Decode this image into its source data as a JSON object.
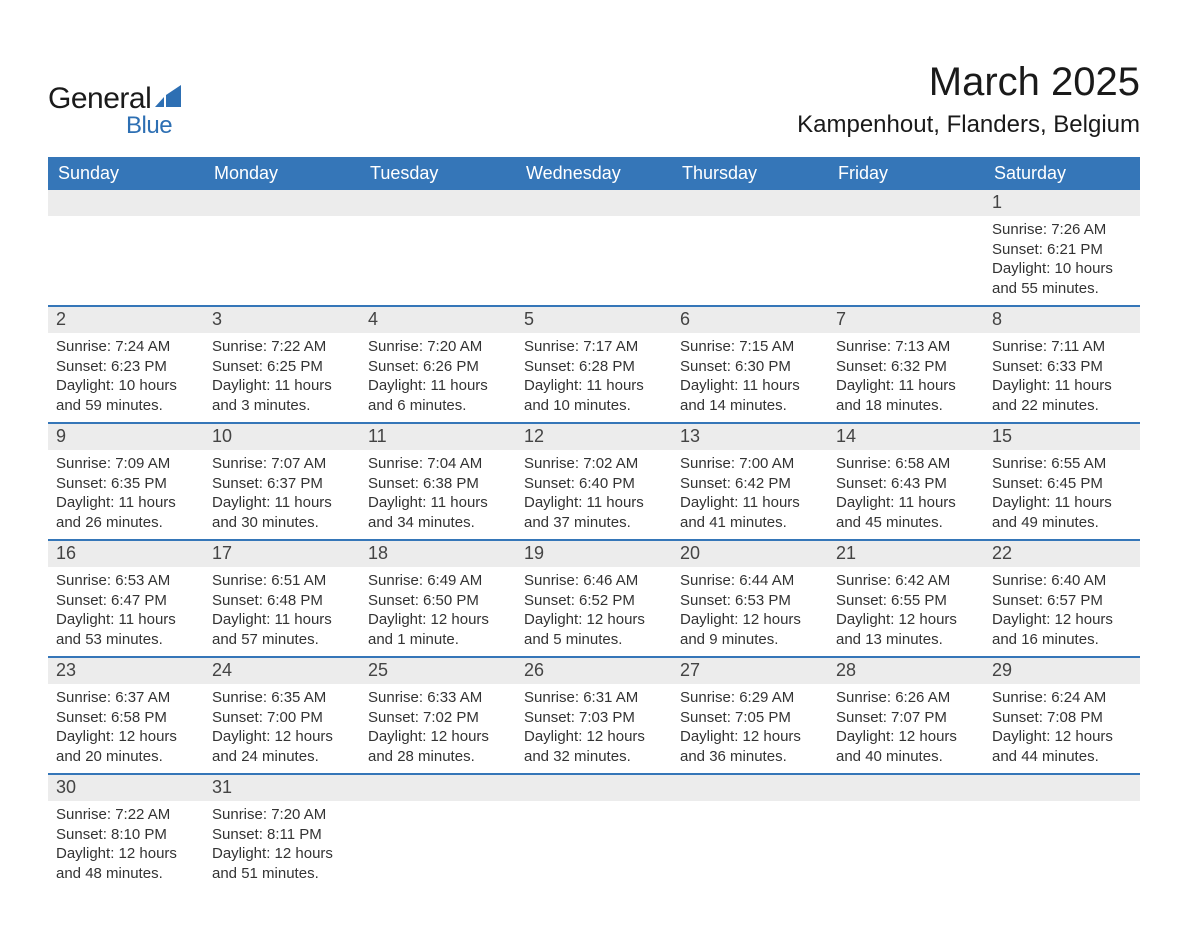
{
  "brand": {
    "name_part1": "General",
    "name_part2": "Blue",
    "color_primary": "#2d6fb3"
  },
  "header": {
    "title": "March 2025",
    "location": "Kampenhout, Flanders, Belgium"
  },
  "calendar": {
    "header_bg": "#3576b8",
    "header_fg": "#ffffff",
    "daynum_bg": "#ececec",
    "rule_color": "#3576b8",
    "columns": [
      "Sunday",
      "Monday",
      "Tuesday",
      "Wednesday",
      "Thursday",
      "Friday",
      "Saturday"
    ],
    "weeks": [
      {
        "days": [
          {
            "num": "",
            "sunrise": "",
            "sunset": "",
            "daylight1": "",
            "daylight2": ""
          },
          {
            "num": "",
            "sunrise": "",
            "sunset": "",
            "daylight1": "",
            "daylight2": ""
          },
          {
            "num": "",
            "sunrise": "",
            "sunset": "",
            "daylight1": "",
            "daylight2": ""
          },
          {
            "num": "",
            "sunrise": "",
            "sunset": "",
            "daylight1": "",
            "daylight2": ""
          },
          {
            "num": "",
            "sunrise": "",
            "sunset": "",
            "daylight1": "",
            "daylight2": ""
          },
          {
            "num": "",
            "sunrise": "",
            "sunset": "",
            "daylight1": "",
            "daylight2": ""
          },
          {
            "num": "1",
            "sunrise": "Sunrise: 7:26 AM",
            "sunset": "Sunset: 6:21 PM",
            "daylight1": "Daylight: 10 hours",
            "daylight2": "and 55 minutes."
          }
        ]
      },
      {
        "days": [
          {
            "num": "2",
            "sunrise": "Sunrise: 7:24 AM",
            "sunset": "Sunset: 6:23 PM",
            "daylight1": "Daylight: 10 hours",
            "daylight2": "and 59 minutes."
          },
          {
            "num": "3",
            "sunrise": "Sunrise: 7:22 AM",
            "sunset": "Sunset: 6:25 PM",
            "daylight1": "Daylight: 11 hours",
            "daylight2": "and 3 minutes."
          },
          {
            "num": "4",
            "sunrise": "Sunrise: 7:20 AM",
            "sunset": "Sunset: 6:26 PM",
            "daylight1": "Daylight: 11 hours",
            "daylight2": "and 6 minutes."
          },
          {
            "num": "5",
            "sunrise": "Sunrise: 7:17 AM",
            "sunset": "Sunset: 6:28 PM",
            "daylight1": "Daylight: 11 hours",
            "daylight2": "and 10 minutes."
          },
          {
            "num": "6",
            "sunrise": "Sunrise: 7:15 AM",
            "sunset": "Sunset: 6:30 PM",
            "daylight1": "Daylight: 11 hours",
            "daylight2": "and 14 minutes."
          },
          {
            "num": "7",
            "sunrise": "Sunrise: 7:13 AM",
            "sunset": "Sunset: 6:32 PM",
            "daylight1": "Daylight: 11 hours",
            "daylight2": "and 18 minutes."
          },
          {
            "num": "8",
            "sunrise": "Sunrise: 7:11 AM",
            "sunset": "Sunset: 6:33 PM",
            "daylight1": "Daylight: 11 hours",
            "daylight2": "and 22 minutes."
          }
        ]
      },
      {
        "days": [
          {
            "num": "9",
            "sunrise": "Sunrise: 7:09 AM",
            "sunset": "Sunset: 6:35 PM",
            "daylight1": "Daylight: 11 hours",
            "daylight2": "and 26 minutes."
          },
          {
            "num": "10",
            "sunrise": "Sunrise: 7:07 AM",
            "sunset": "Sunset: 6:37 PM",
            "daylight1": "Daylight: 11 hours",
            "daylight2": "and 30 minutes."
          },
          {
            "num": "11",
            "sunrise": "Sunrise: 7:04 AM",
            "sunset": "Sunset: 6:38 PM",
            "daylight1": "Daylight: 11 hours",
            "daylight2": "and 34 minutes."
          },
          {
            "num": "12",
            "sunrise": "Sunrise: 7:02 AM",
            "sunset": "Sunset: 6:40 PM",
            "daylight1": "Daylight: 11 hours",
            "daylight2": "and 37 minutes."
          },
          {
            "num": "13",
            "sunrise": "Sunrise: 7:00 AM",
            "sunset": "Sunset: 6:42 PM",
            "daylight1": "Daylight: 11 hours",
            "daylight2": "and 41 minutes."
          },
          {
            "num": "14",
            "sunrise": "Sunrise: 6:58 AM",
            "sunset": "Sunset: 6:43 PM",
            "daylight1": "Daylight: 11 hours",
            "daylight2": "and 45 minutes."
          },
          {
            "num": "15",
            "sunrise": "Sunrise: 6:55 AM",
            "sunset": "Sunset: 6:45 PM",
            "daylight1": "Daylight: 11 hours",
            "daylight2": "and 49 minutes."
          }
        ]
      },
      {
        "days": [
          {
            "num": "16",
            "sunrise": "Sunrise: 6:53 AM",
            "sunset": "Sunset: 6:47 PM",
            "daylight1": "Daylight: 11 hours",
            "daylight2": "and 53 minutes."
          },
          {
            "num": "17",
            "sunrise": "Sunrise: 6:51 AM",
            "sunset": "Sunset: 6:48 PM",
            "daylight1": "Daylight: 11 hours",
            "daylight2": "and 57 minutes."
          },
          {
            "num": "18",
            "sunrise": "Sunrise: 6:49 AM",
            "sunset": "Sunset: 6:50 PM",
            "daylight1": "Daylight: 12 hours",
            "daylight2": "and 1 minute."
          },
          {
            "num": "19",
            "sunrise": "Sunrise: 6:46 AM",
            "sunset": "Sunset: 6:52 PM",
            "daylight1": "Daylight: 12 hours",
            "daylight2": "and 5 minutes."
          },
          {
            "num": "20",
            "sunrise": "Sunrise: 6:44 AM",
            "sunset": "Sunset: 6:53 PM",
            "daylight1": "Daylight: 12 hours",
            "daylight2": "and 9 minutes."
          },
          {
            "num": "21",
            "sunrise": "Sunrise: 6:42 AM",
            "sunset": "Sunset: 6:55 PM",
            "daylight1": "Daylight: 12 hours",
            "daylight2": "and 13 minutes."
          },
          {
            "num": "22",
            "sunrise": "Sunrise: 6:40 AM",
            "sunset": "Sunset: 6:57 PM",
            "daylight1": "Daylight: 12 hours",
            "daylight2": "and 16 minutes."
          }
        ]
      },
      {
        "days": [
          {
            "num": "23",
            "sunrise": "Sunrise: 6:37 AM",
            "sunset": "Sunset: 6:58 PM",
            "daylight1": "Daylight: 12 hours",
            "daylight2": "and 20 minutes."
          },
          {
            "num": "24",
            "sunrise": "Sunrise: 6:35 AM",
            "sunset": "Sunset: 7:00 PM",
            "daylight1": "Daylight: 12 hours",
            "daylight2": "and 24 minutes."
          },
          {
            "num": "25",
            "sunrise": "Sunrise: 6:33 AM",
            "sunset": "Sunset: 7:02 PM",
            "daylight1": "Daylight: 12 hours",
            "daylight2": "and 28 minutes."
          },
          {
            "num": "26",
            "sunrise": "Sunrise: 6:31 AM",
            "sunset": "Sunset: 7:03 PM",
            "daylight1": "Daylight: 12 hours",
            "daylight2": "and 32 minutes."
          },
          {
            "num": "27",
            "sunrise": "Sunrise: 6:29 AM",
            "sunset": "Sunset: 7:05 PM",
            "daylight1": "Daylight: 12 hours",
            "daylight2": "and 36 minutes."
          },
          {
            "num": "28",
            "sunrise": "Sunrise: 6:26 AM",
            "sunset": "Sunset: 7:07 PM",
            "daylight1": "Daylight: 12 hours",
            "daylight2": "and 40 minutes."
          },
          {
            "num": "29",
            "sunrise": "Sunrise: 6:24 AM",
            "sunset": "Sunset: 7:08 PM",
            "daylight1": "Daylight: 12 hours",
            "daylight2": "and 44 minutes."
          }
        ]
      },
      {
        "days": [
          {
            "num": "30",
            "sunrise": "Sunrise: 7:22 AM",
            "sunset": "Sunset: 8:10 PM",
            "daylight1": "Daylight: 12 hours",
            "daylight2": "and 48 minutes."
          },
          {
            "num": "31",
            "sunrise": "Sunrise: 7:20 AM",
            "sunset": "Sunset: 8:11 PM",
            "daylight1": "Daylight: 12 hours",
            "daylight2": "and 51 minutes."
          },
          {
            "num": "",
            "sunrise": "",
            "sunset": "",
            "daylight1": "",
            "daylight2": ""
          },
          {
            "num": "",
            "sunrise": "",
            "sunset": "",
            "daylight1": "",
            "daylight2": ""
          },
          {
            "num": "",
            "sunrise": "",
            "sunset": "",
            "daylight1": "",
            "daylight2": ""
          },
          {
            "num": "",
            "sunrise": "",
            "sunset": "",
            "daylight1": "",
            "daylight2": ""
          },
          {
            "num": "",
            "sunrise": "",
            "sunset": "",
            "daylight1": "",
            "daylight2": ""
          }
        ]
      }
    ]
  }
}
